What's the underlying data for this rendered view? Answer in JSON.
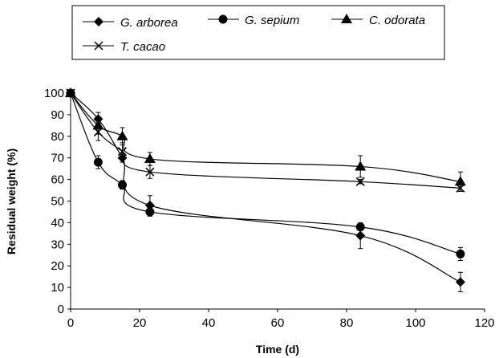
{
  "chart_data": {
    "type": "line",
    "xlabel": "Time (d)",
    "ylabel": "Residual weight (%)",
    "xlim": [
      0,
      120
    ],
    "ylim": [
      0,
      100
    ],
    "xticks": [
      "0",
      "20",
      "40",
      "60",
      "80",
      "100",
      "120"
    ],
    "yticks": [
      "0",
      "10",
      "20",
      "30",
      "40",
      "50",
      "60",
      "70",
      "80",
      "90",
      "100"
    ],
    "grid": false,
    "legend_position": "top",
    "series": [
      {
        "name": "G. arborea",
        "marker": "diamond",
        "x": [
          0,
          8,
          15,
          23,
          84,
          113
        ],
        "y": [
          100,
          88,
          70,
          48,
          34,
          12.5
        ],
        "err": [
          0,
          3,
          2,
          4.5,
          6,
          4.5
        ]
      },
      {
        "name": "G. sepium",
        "marker": "circle",
        "x": [
          0,
          8,
          15,
          23,
          84,
          113
        ],
        "y": [
          100,
          68,
          57.5,
          45,
          38,
          25.5
        ],
        "err": [
          0,
          3,
          2,
          2,
          1.5,
          3
        ]
      },
      {
        "name": "C. odorata",
        "marker": "triangle",
        "x": [
          0,
          8,
          15,
          23,
          84,
          113
        ],
        "y": [
          100,
          85,
          80,
          69.5,
          66,
          59
        ],
        "err": [
          0,
          4,
          4,
          3,
          5,
          4.5
        ]
      },
      {
        "name": "T. cacao",
        "marker": "x",
        "x": [
          0,
          8,
          15,
          23,
          84,
          113
        ],
        "y": [
          100,
          82,
          73,
          63.5,
          59,
          56
        ],
        "err": [
          0,
          4,
          4,
          3,
          1,
          1.5
        ]
      }
    ]
  }
}
